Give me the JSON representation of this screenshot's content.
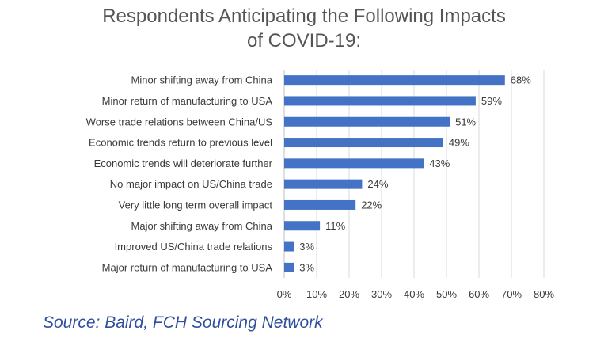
{
  "chart_data": {
    "type": "bar",
    "orientation": "horizontal",
    "title_line1": "Respondents Anticipating the Following Impacts",
    "title_line2": "of COVID-19:",
    "categories": [
      "Minor shifting away from China",
      "Minor return of manufacturing to USA",
      "Worse trade relations between China/US",
      "Economic trends return to previous level",
      "Economic trends will deteriorate further",
      "No major impact on US/China trade",
      "Very little long term overall impact",
      "Major shifting away from China",
      "Improved US/China trade relations",
      "Major return of manufacturing to USA"
    ],
    "values": [
      68,
      59,
      51,
      49,
      43,
      24,
      22,
      11,
      3,
      3
    ],
    "value_labels": [
      "68%",
      "59%",
      "51%",
      "49%",
      "43%",
      "24%",
      "22%",
      "11%",
      "3%",
      "3%"
    ],
    "xlim": [
      0,
      80
    ],
    "x_ticks": [
      "0%",
      "10%",
      "20%",
      "30%",
      "40%",
      "50%",
      "60%",
      "70%",
      "80%"
    ],
    "grid": true,
    "bar_color": "#4472c4",
    "gridline_color": "#d9d9d9"
  },
  "source_text": "Source: Baird, FCH Sourcing Network"
}
